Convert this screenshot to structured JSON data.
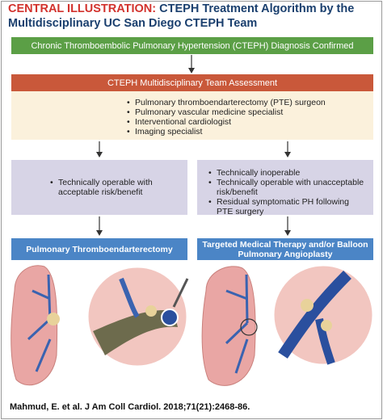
{
  "header": {
    "label": "CENTRAL ILLUSTRATION:",
    "title": "CTEPH Treatment Algorithm by the Multidisciplinary UC San Diego CTEPH Team"
  },
  "diagnosis": "Chronic Thromboembolic Pulmonary Hypertension (CTEPH) Diagnosis Confirmed",
  "assessment": {
    "title": "CTEPH Multidisciplinary Team Assessment",
    "items": [
      "Pulmonary thromboendarterectomy (PTE) surgeon",
      "Pulmonary vascular medicine specialist",
      "Interventional cardiologist",
      "Imaging specialist"
    ]
  },
  "criteria": {
    "left": [
      "Technically operable with acceptable risk/benefit"
    ],
    "right": [
      "Technically inoperable",
      "Technically operable with unacceptable risk/benefit",
      "Residual symptomatic PH following PTE surgery"
    ]
  },
  "treatments": {
    "left": "Pulmonary Thromboendarterectomy",
    "right": "Targeted Medical Therapy and/or Balloon Pulmonary Angioplasty"
  },
  "citation": "Mahmud, E. et al. J Am Coll Cardiol. 2018;71(21):2468-86."
}
